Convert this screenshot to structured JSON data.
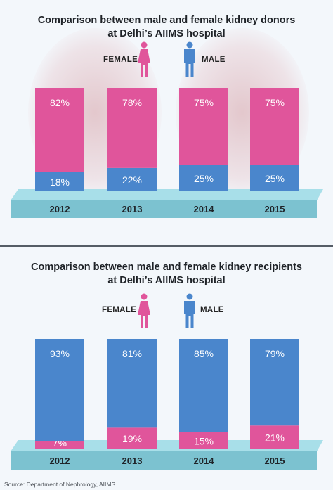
{
  "colors": {
    "female": "#e0559b",
    "male": "#4a86cc",
    "platform_top": "#a8dfe9",
    "platform_front": "#7cc2d0",
    "pill_female": "#ffffff",
    "pill_male": "#ffffff"
  },
  "icons": {
    "female": "female-person-icon",
    "male": "male-person-icon"
  },
  "legend": {
    "female": "FEMALE",
    "male": "MALE"
  },
  "source": "Source: Department of Nephrology, AIIMS",
  "chart_data": [
    {
      "type": "bar",
      "stacked": true,
      "title": "Comparison between male and female kidney donors at Delhi’s AIIMS hospital",
      "title_lines": [
        "Comparison between male and female kidney donors",
        "at Delhi’s AIIMS hospital"
      ],
      "categories": [
        "2012",
        "2013",
        "2014",
        "2015"
      ],
      "series": [
        {
          "name": "MALE",
          "values": [
            18,
            22,
            25,
            25
          ],
          "labels": [
            "18%",
            "22%",
            "25%",
            "25%"
          ]
        },
        {
          "name": "FEMALE",
          "values": [
            82,
            78,
            75,
            75
          ],
          "labels": [
            "82%",
            "78%",
            "75%",
            "75%"
          ]
        }
      ],
      "ylim": [
        0,
        100
      ],
      "grid": false,
      "legend_position": "top-center"
    },
    {
      "type": "bar",
      "stacked": true,
      "title": "Comparison between male and female kidney recipients at Delhi’s AIIMS hospital",
      "title_lines": [
        "Comparison between male and female kidney recipients",
        "at Delhi’s AIIMS hospital"
      ],
      "categories": [
        "2012",
        "2013",
        "2014",
        "2015"
      ],
      "series": [
        {
          "name": "FEMALE",
          "values": [
            7,
            19,
            15,
            21
          ],
          "labels": [
            "7%",
            "19%",
            "15%",
            "21%"
          ]
        },
        {
          "name": "MALE",
          "values": [
            93,
            81,
            85,
            79
          ],
          "labels": [
            "93%",
            "81%",
            "85%",
            "79%"
          ]
        }
      ],
      "ylim": [
        0,
        100
      ],
      "grid": false,
      "legend_position": "top-center"
    }
  ]
}
